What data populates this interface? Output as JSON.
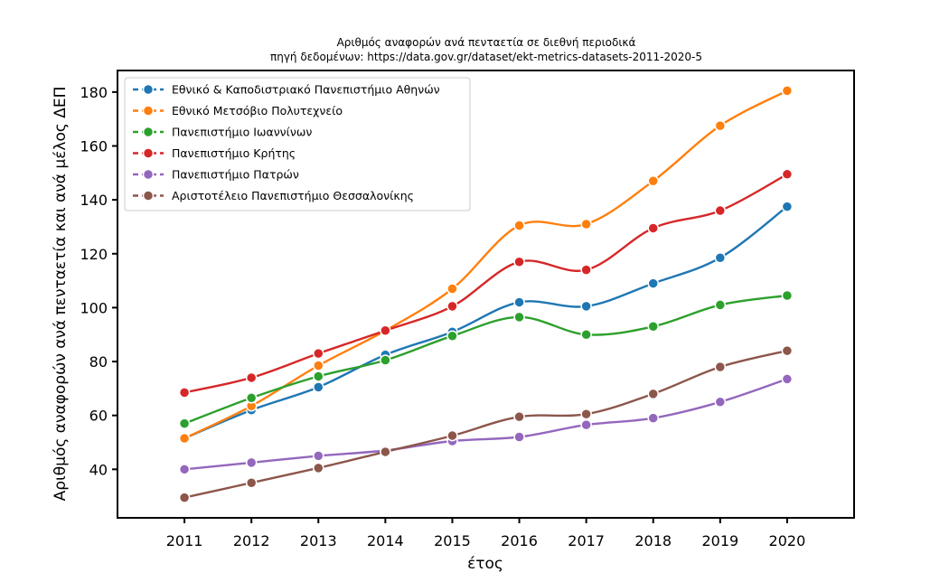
{
  "chart_data": {
    "type": "line",
    "title": "Αριθμός αναφορών ανά πενταετία σε διεθνή περιοδικά",
    "subtitle": "πηγή δεδομένων: https://data.gov.gr/dataset/ekt-metrics-datasets-2011-2020-5",
    "xlabel": "έτος",
    "ylabel": "Αριθμός αναφορών ανά πενταετία και ανά μέλος ΔΕΠ",
    "x": [
      2011,
      2012,
      2013,
      2014,
      2015,
      2016,
      2017,
      2018,
      2019,
      2020
    ],
    "x_tick_labels": [
      "2011",
      "2012",
      "2013",
      "2014",
      "2015",
      "2016",
      "2017",
      "2018",
      "2019",
      "2020"
    ],
    "xlim": [
      2010,
      2021
    ],
    "ylim": [
      22,
      188
    ],
    "y_ticks": [
      40,
      60,
      80,
      100,
      120,
      140,
      160,
      180
    ],
    "y_tick_labels": [
      "40",
      "60",
      "80",
      "100",
      "120",
      "140",
      "160",
      "180"
    ],
    "grid": false,
    "legend_position": "top-left",
    "series": [
      {
        "name": "Εθνικό & Καποδιστριακό Πανεπιστήμιο Αθηνών",
        "color": "#1f77b4",
        "values": [
          51.5,
          62,
          70.5,
          82.5,
          91,
          102,
          100.5,
          109,
          118.5,
          137.5
        ]
      },
      {
        "name": "Εθνικό Μετσόβιο Πολυτεχνείο",
        "color": "#ff7f0e",
        "values": [
          51.5,
          63.5,
          78.5,
          91.5,
          107,
          130.5,
          131,
          147,
          167.5,
          180.5
        ]
      },
      {
        "name": "Πανεπιστήμιο Ιωαννίνων",
        "color": "#2ca02c",
        "values": [
          57,
          66.5,
          74.5,
          80.5,
          89.5,
          96.5,
          90,
          93,
          101,
          104.5
        ]
      },
      {
        "name": "Πανεπιστήμιο Κρήτης",
        "color": "#d62728",
        "values": [
          68.5,
          74,
          83,
          91.5,
          100.5,
          117,
          114,
          129.5,
          136,
          149.5
        ]
      },
      {
        "name": "Πανεπιστήμιο Πατρών",
        "color": "#9467bd",
        "values": [
          40,
          42.5,
          45,
          47,
          50.5,
          52,
          56.5,
          59,
          65,
          73.5
        ]
      },
      {
        "name": "Αριστοτέλειο Πανεπιστήμιο Θεσσαλονίκης",
        "color": "#8c564b",
        "values": [
          29.5,
          35,
          40.5,
          46.5,
          52.5,
          59.5,
          60.5,
          68,
          78,
          84
        ]
      }
    ]
  }
}
